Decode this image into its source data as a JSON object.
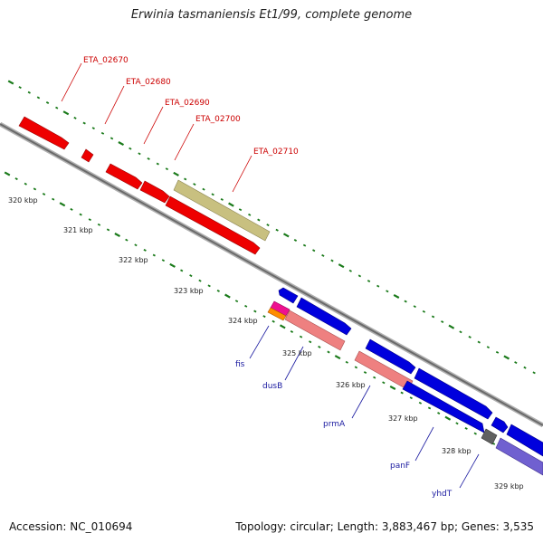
{
  "title": "Erwinia tasmaniensis Et1/99, complete genome",
  "footer": {
    "accession": "Accession: NC_010694",
    "summary": "Topology: circular; Length: 3,883,467 bp; Genes: 3,535"
  },
  "colors": {
    "backbone": "#808080",
    "tick": "#1a7a1a",
    "red_gene": "#ee0000",
    "olive_gene": "#c8c080",
    "blue_gene": "#0000dd",
    "pink_gene": "#ee8080",
    "purple_gene": "#7060d0",
    "dark_gene": "#606060",
    "magenta_gene": "#ee1090",
    "orange_gene": "#ff8c00"
  },
  "ticks": [
    "320 kbp",
    "321 kbp",
    "322 kbp",
    "323 kbp",
    "324 kbp",
    "325 kbp",
    "326 kbp",
    "327 kbp",
    "328 kbp",
    "329 kbp"
  ],
  "top_labels": [
    "ETA_02670",
    "ETA_02680",
    "ETA_02690",
    "ETA_02700",
    "ETA_02710"
  ],
  "bottom_labels": [
    "fis",
    "dusB",
    "prmA",
    "panF",
    "yhdT"
  ]
}
